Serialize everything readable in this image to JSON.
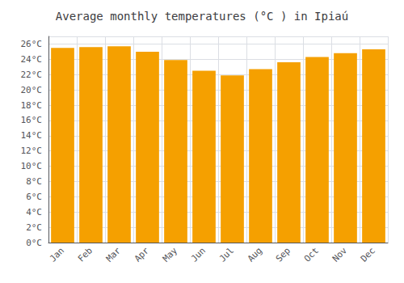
{
  "chart_data": {
    "type": "bar",
    "title": "Average monthly temperatures (°C ) in Ipiaú",
    "categories": [
      "Jan",
      "Feb",
      "Mar",
      "Apr",
      "May",
      "Jun",
      "Jul",
      "Aug",
      "Sep",
      "Oct",
      "Nov",
      "Dec"
    ],
    "values": [
      25.5,
      25.6,
      25.7,
      25.0,
      23.9,
      22.5,
      21.9,
      22.7,
      23.6,
      24.3,
      24.8,
      25.3
    ],
    "color": "#F5A000",
    "ylim": [
      0,
      27
    ],
    "yticks": [
      {
        "value": 0,
        "label": "0°C"
      },
      {
        "value": 2,
        "label": "2°C"
      },
      {
        "value": 4,
        "label": "4°C"
      },
      {
        "value": 6,
        "label": "6°C"
      },
      {
        "value": 8,
        "label": "8°C"
      },
      {
        "value": 10,
        "label": "10°C"
      },
      {
        "value": 12,
        "label": "12°C"
      },
      {
        "value": 14,
        "label": "14°C"
      },
      {
        "value": 16,
        "label": "16°C"
      },
      {
        "value": 18,
        "label": "18°C"
      },
      {
        "value": 20,
        "label": "20°C"
      },
      {
        "value": 22,
        "label": "22°C"
      },
      {
        "value": 24,
        "label": "24°C"
      },
      {
        "value": 26,
        "label": "26°C"
      }
    ],
    "grid": true
  }
}
